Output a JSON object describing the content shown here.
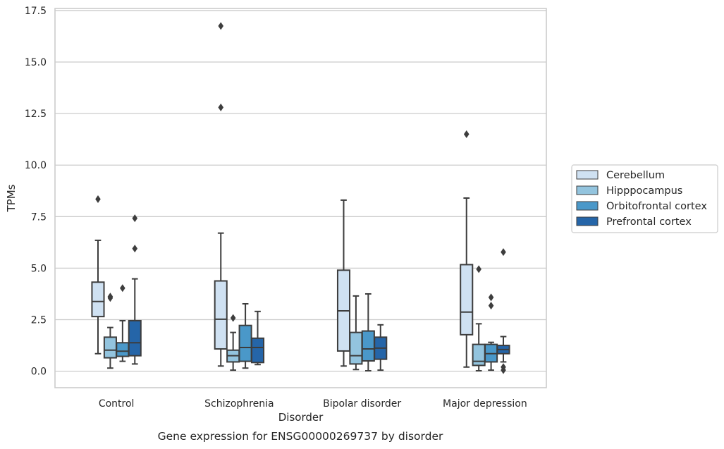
{
  "caption": "Gene expression for ENSG00000269737 by disorder",
  "chart_data": {
    "type": "box",
    "title": "",
    "xlabel": "Disorder",
    "ylabel": "TPMs",
    "ylim": [
      -0.8,
      17.6
    ],
    "yticks": [
      0.0,
      2.5,
      5.0,
      7.5,
      10.0,
      12.5,
      15.0,
      17.5
    ],
    "ytick_labels": [
      "0.0",
      "2.5",
      "5.0",
      "7.5",
      "10.0",
      "12.5",
      "15.0",
      "17.5"
    ],
    "grid": "horizontal",
    "legend_position": "right",
    "categories": [
      "Control",
      "Schizophrenia",
      "Bipolar disorder",
      "Major depression"
    ],
    "series": [
      {
        "name": "Cerebellum",
        "color": "#cfe1f2",
        "boxes": [
          {
            "whislo": 0.85,
            "q1": 2.65,
            "med": 3.38,
            "q3": 4.32,
            "whishi": 6.35,
            "fliers": [
              8.35
            ]
          },
          {
            "whislo": 0.25,
            "q1": 1.08,
            "med": 2.52,
            "q3": 4.38,
            "whishi": 6.7,
            "fliers": [
              12.8,
              16.75
            ]
          },
          {
            "whislo": 0.25,
            "q1": 0.98,
            "med": 2.93,
            "q3": 4.9,
            "whishi": 8.3,
            "fliers": []
          },
          {
            "whislo": 0.2,
            "q1": 1.77,
            "med": 2.87,
            "q3": 5.17,
            "whishi": 8.4,
            "fliers": [
              11.5
            ]
          }
        ]
      },
      {
        "name": "Hipppocampus",
        "color": "#93c4de",
        "boxes": [
          {
            "whislo": 0.15,
            "q1": 0.65,
            "med": 1.02,
            "q3": 1.65,
            "whishi": 2.12,
            "fliers": [
              3.55,
              3.62
            ]
          },
          {
            "whislo": 0.05,
            "q1": 0.45,
            "med": 0.75,
            "q3": 1.02,
            "whishi": 1.88,
            "fliers": [
              2.58
            ]
          },
          {
            "whislo": 0.08,
            "q1": 0.35,
            "med": 0.75,
            "q3": 1.88,
            "whishi": 3.65,
            "fliers": []
          },
          {
            "whislo": 0.02,
            "q1": 0.28,
            "med": 0.48,
            "q3": 1.3,
            "whishi": 2.3,
            "fliers": [
              4.95
            ]
          }
        ]
      },
      {
        "name": "Orbitofrontal cortex",
        "color": "#4a98c9",
        "boxes": [
          {
            "whislo": 0.48,
            "q1": 0.72,
            "med": 0.97,
            "q3": 1.38,
            "whishi": 2.45,
            "fliers": [
              4.03
            ]
          },
          {
            "whislo": 0.15,
            "q1": 0.48,
            "med": 1.15,
            "q3": 2.22,
            "whishi": 3.27,
            "fliers": []
          },
          {
            "whislo": 0.02,
            "q1": 0.5,
            "med": 1.08,
            "q3": 1.95,
            "whishi": 3.75,
            "fliers": []
          },
          {
            "whislo": 0.05,
            "q1": 0.45,
            "med": 0.85,
            "q3": 1.3,
            "whishi": 1.4,
            "fliers": [
              3.18,
              3.58
            ]
          }
        ]
      },
      {
        "name": "Prefrontal cortex",
        "color": "#2565a8",
        "boxes": [
          {
            "whislo": 0.35,
            "q1": 0.75,
            "med": 1.38,
            "q3": 2.45,
            "whishi": 4.48,
            "fliers": [
              5.95,
              7.42
            ]
          },
          {
            "whislo": 0.32,
            "q1": 0.42,
            "med": 1.15,
            "q3": 1.6,
            "whishi": 2.9,
            "fliers": []
          },
          {
            "whislo": 0.05,
            "q1": 0.58,
            "med": 1.12,
            "q3": 1.65,
            "whishi": 2.25,
            "fliers": []
          },
          {
            "whislo": 0.45,
            "q1": 0.85,
            "med": 1.05,
            "q3": 1.25,
            "whishi": 1.68,
            "fliers": [
              0.05,
              0.2,
              5.78
            ]
          }
        ]
      }
    ]
  }
}
